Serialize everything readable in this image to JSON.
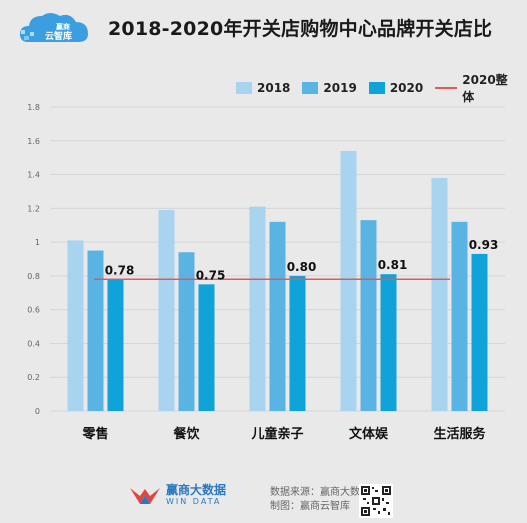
{
  "header": {
    "logo_text": "赢商\n云智库",
    "title": "2018-2020年开关店购物中心品牌开关店比"
  },
  "legend": {
    "items": [
      {
        "label": "2018",
        "color": "#a8d4ef",
        "kind": "bar"
      },
      {
        "label": "2019",
        "color": "#5ab4e3",
        "kind": "bar"
      },
      {
        "label": "2020",
        "color": "#0fa3d9",
        "kind": "bar"
      },
      {
        "label": "2020整体",
        "color": "#e05a5a",
        "kind": "line"
      }
    ]
  },
  "chart_data": {
    "type": "bar",
    "title": "2018-2020年开关店购物中心品牌开关店比",
    "categories": [
      "零售",
      "餐饮",
      "儿童亲子",
      "文体娱",
      "生活服务"
    ],
    "series": [
      {
        "name": "2018",
        "values": [
          1.01,
          1.19,
          1.21,
          1.54,
          1.38
        ]
      },
      {
        "name": "2019",
        "values": [
          0.95,
          0.94,
          1.12,
          1.13,
          1.12
        ]
      },
      {
        "name": "2020",
        "values": [
          0.78,
          0.75,
          0.8,
          0.81,
          0.93
        ]
      }
    ],
    "overall_line": {
      "name": "2020整体",
      "value": 0.78
    },
    "data_labels": [
      "0.78",
      "0.75",
      "0.80",
      "0.81",
      "0.93"
    ],
    "yticks": [
      "0",
      "0.2",
      "0.4",
      "0.6",
      "0.8",
      "1",
      "1.2",
      "1.4",
      "1.6",
      "1.8"
    ],
    "ylim": [
      0,
      1.8
    ],
    "grid": true,
    "legend_position": "top-right"
  },
  "footer": {
    "brand_main": "赢商大数据",
    "brand_sub": "WIN DATA",
    "source_line1": "数据来源：赢商大数据",
    "source_line2": "制图：赢商云智库"
  }
}
